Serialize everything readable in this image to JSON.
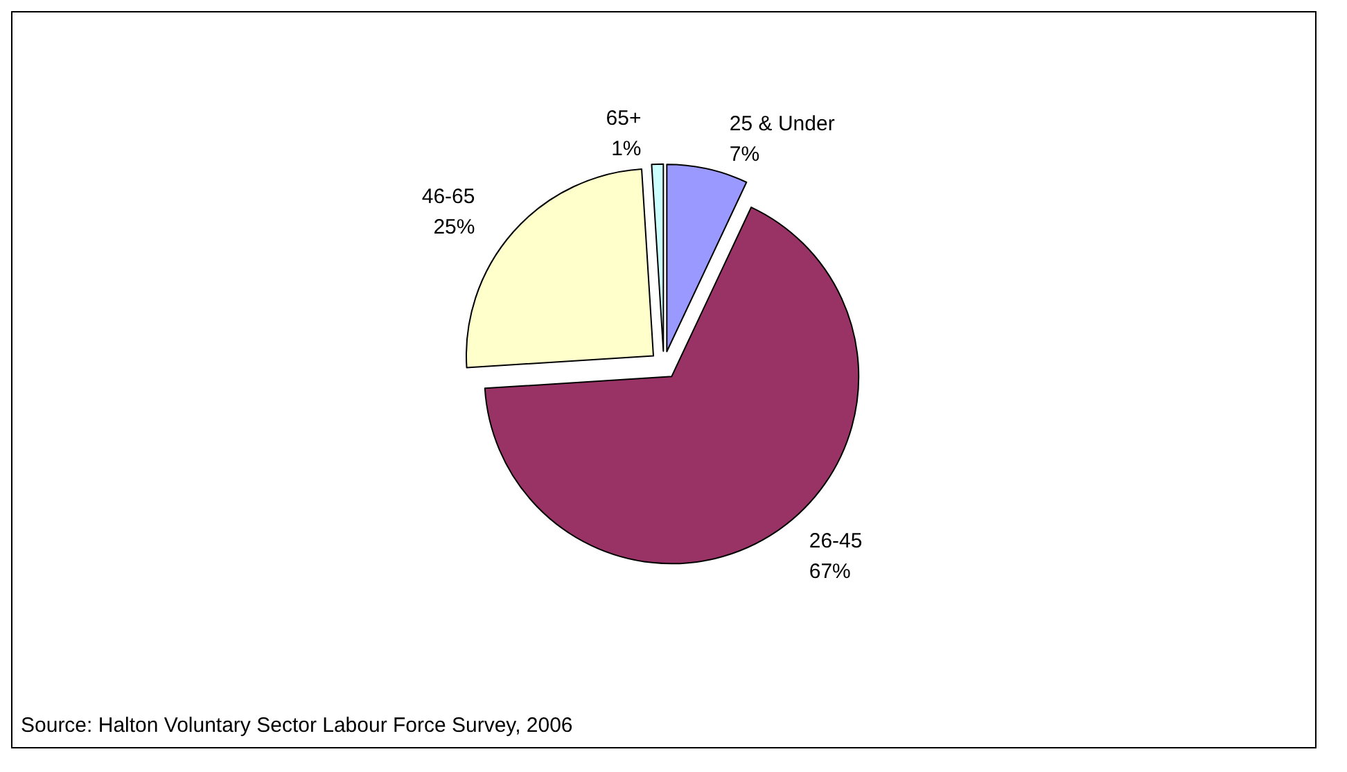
{
  "chart_data": {
    "type": "pie",
    "categories": [
      "25 & Under",
      "26-45",
      "46-65",
      "65+"
    ],
    "values": [
      7,
      67,
      25,
      1
    ],
    "colors": [
      "#9999ff",
      "#993366",
      "#ffffcc",
      "#ccffff"
    ],
    "value_labels": [
      "7%",
      "67%",
      "25%",
      "1%"
    ],
    "annotations": [
      "Source: Halton Voluntary Sector Labour Force Survey, 2006"
    ]
  }
}
